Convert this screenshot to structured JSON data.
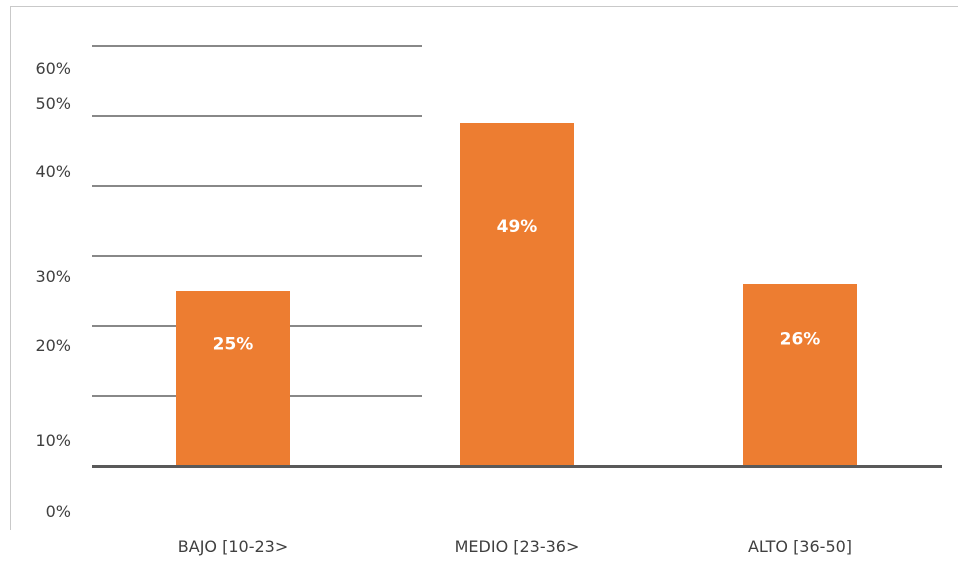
{
  "chart_data": {
    "type": "bar",
    "title": "",
    "xlabel": "",
    "ylabel": "",
    "categories": [
      "BAJO [10-23>",
      "MEDIO [23-36>",
      "ALTO [36-50]"
    ],
    "values": [
      25,
      49,
      26
    ],
    "data_labels": [
      "25%",
      "49%",
      "26%"
    ],
    "y_tick_labels": [
      "0%",
      "10%",
      "20%",
      "30%",
      "40%",
      "50%",
      "60%"
    ],
    "ylim": [
      0,
      60
    ],
    "grid": true,
    "legend": "none",
    "bar_color": "#ed7d31",
    "data_label_color": "#ffffff",
    "axis_color": "#595959"
  }
}
